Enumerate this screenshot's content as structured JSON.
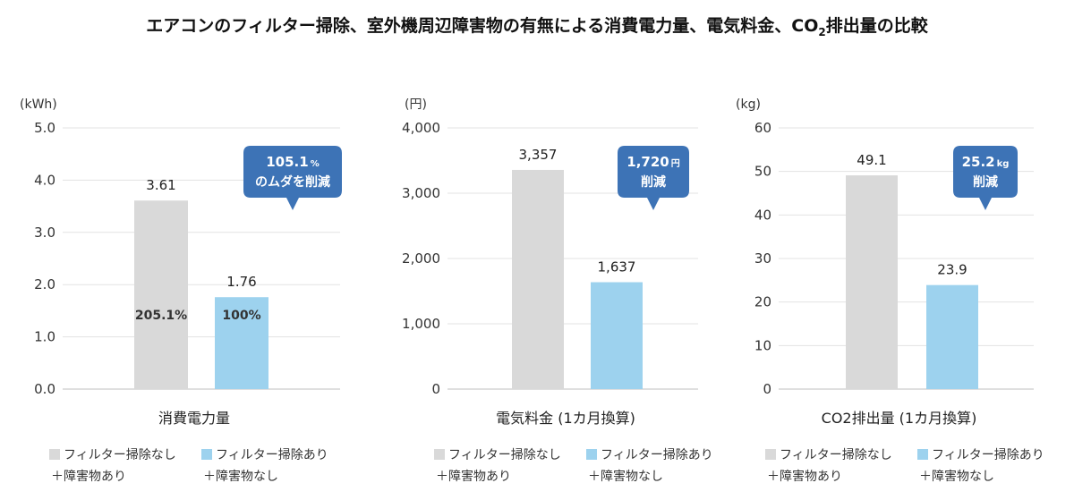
{
  "title": {
    "before_sub": "エアコンのフィルター掃除、室外機周辺障害物の有無による消費電力量、電気料金、CO",
    "sub": "2",
    "after_sub": "排出量の比較"
  },
  "colors": {
    "gray_bar": "#d9d9d9",
    "blue_bar": "#9dd2ee",
    "callout": "#3d73b6",
    "grid": "#e3e3e3"
  },
  "legend": [
    {
      "line1": "フィルター掃除なし",
      "line2": "＋障害物あり",
      "color": "#d9d9d9"
    },
    {
      "line1": "フィルター掃除あり",
      "line2": "＋障害物なし",
      "color": "#9dd2ee"
    }
  ],
  "chart_data": [
    {
      "type": "bar",
      "unit": "(kWh)",
      "xlabel": "消費電力量",
      "ylim": [
        0,
        5
      ],
      "yticks": [
        "0.0",
        "1.0",
        "2.0",
        "3.0",
        "4.0",
        "5.0"
      ],
      "grid": true,
      "series": [
        {
          "name": "フィルター掃除なし＋障害物あり",
          "value": 3.61,
          "label": "3.61",
          "inner_label": "205.1%"
        },
        {
          "name": "フィルター掃除あり＋障害物なし",
          "value": 1.76,
          "label": "1.76",
          "inner_label": "100%"
        }
      ],
      "callout": {
        "value": "105.1",
        "unit": "%",
        "line2": "のムダを削減"
      }
    },
    {
      "type": "bar",
      "unit": "(円)",
      "xlabel": "電気料金 (1カ月換算)",
      "ylim": [
        0,
        4000
      ],
      "yticks": [
        "0",
        "1,000",
        "2,000",
        "3,000",
        "4,000"
      ],
      "grid": true,
      "series": [
        {
          "name": "フィルター掃除なし＋障害物あり",
          "value": 3357,
          "label": "3,357",
          "inner_label": ""
        },
        {
          "name": "フィルター掃除あり＋障害物なし",
          "value": 1637,
          "label": "1,637",
          "inner_label": ""
        }
      ],
      "callout": {
        "value": "1,720",
        "unit": "円",
        "line2": "削減"
      }
    },
    {
      "type": "bar",
      "unit": "(kg)",
      "xlabel": "CO2排出量 (1カ月換算)",
      "ylim": [
        0,
        60
      ],
      "yticks": [
        "0",
        "10",
        "20",
        "30",
        "40",
        "50",
        "60"
      ],
      "grid": true,
      "series": [
        {
          "name": "フィルター掃除なし＋障害物あり",
          "value": 49.1,
          "label": "49.1",
          "inner_label": ""
        },
        {
          "name": "フィルター掃除あり＋障害物なし",
          "value": 23.9,
          "label": "23.9",
          "inner_label": ""
        }
      ],
      "callout": {
        "value": "25.2",
        "unit": "kg",
        "line2": "削減"
      }
    }
  ]
}
